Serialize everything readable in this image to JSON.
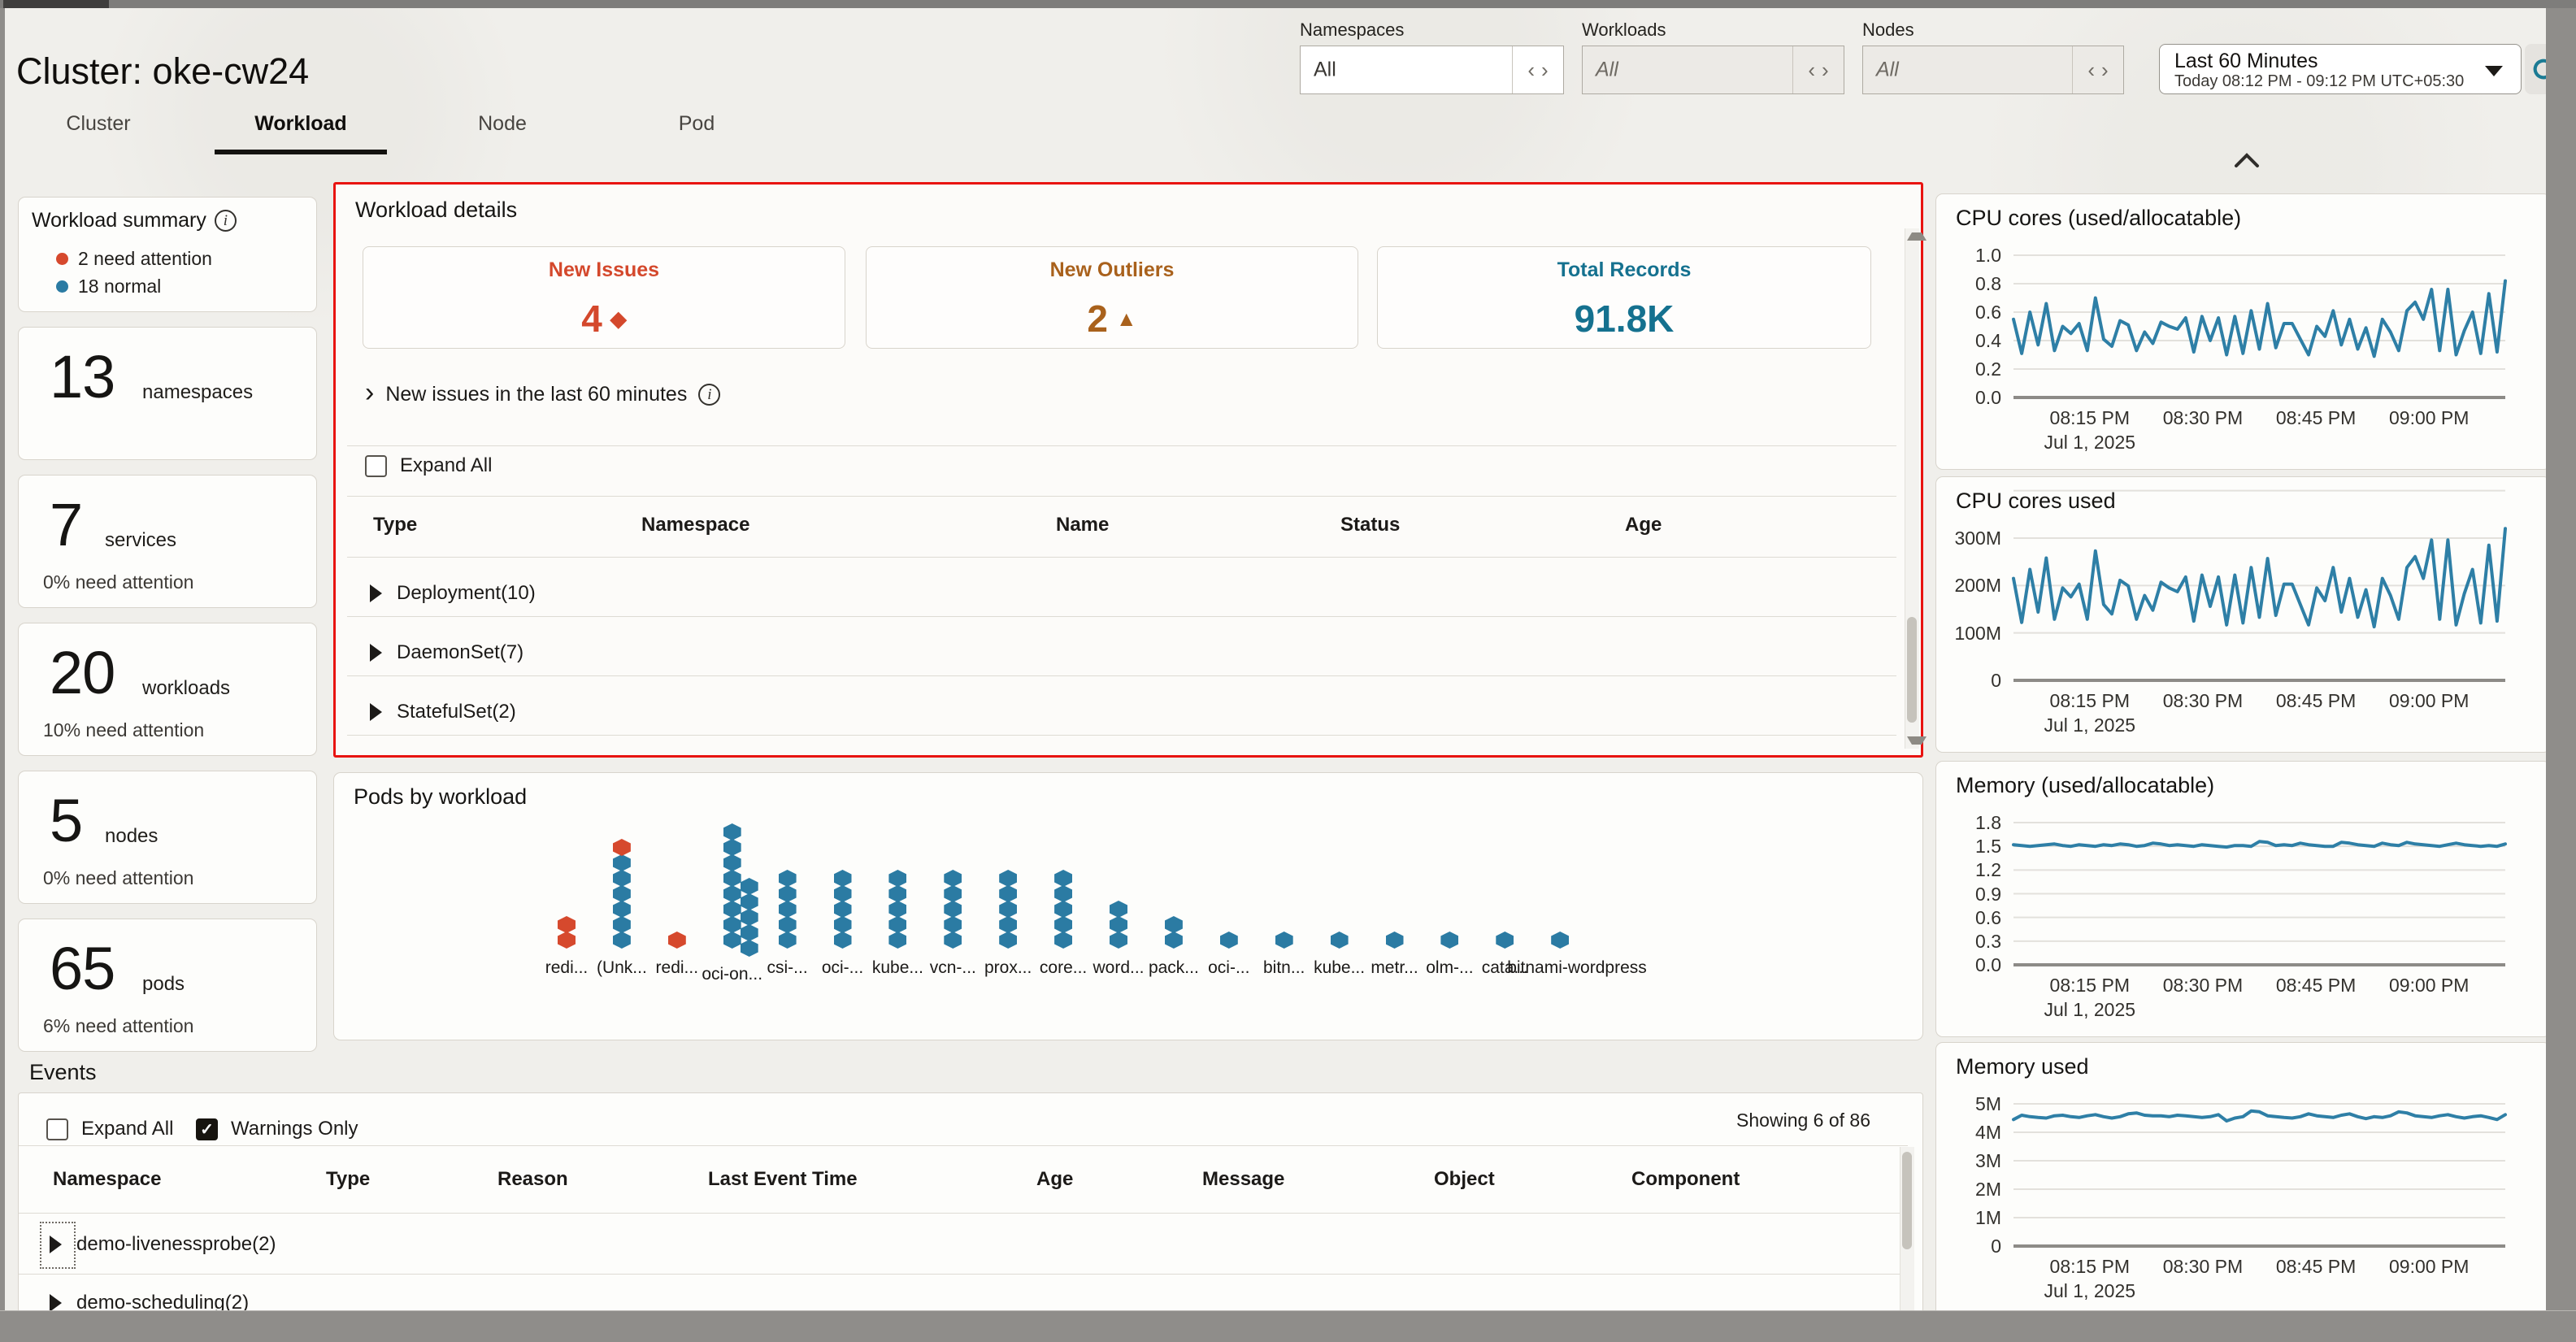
{
  "header": {
    "title": "Cluster: oke-cw24",
    "tabs": [
      {
        "label": "Cluster",
        "active": false
      },
      {
        "label": "Workload",
        "active": true
      },
      {
        "label": "Node",
        "active": false
      },
      {
        "label": "Pod",
        "active": false
      }
    ],
    "filters": [
      {
        "label": "Namespaces",
        "value": "All",
        "disabled": false
      },
      {
        "label": "Workloads",
        "value": "All",
        "disabled": true
      },
      {
        "label": "Nodes",
        "value": "All",
        "disabled": true
      }
    ],
    "time_range": {
      "primary": "Last 60 Minutes",
      "secondary": "Today 08:12 PM - 09:12 PM UTC+05:30"
    }
  },
  "sidebar": {
    "summary": {
      "title": "Workload summary",
      "legend": [
        {
          "text": "2 need attention",
          "color": "#d6492d"
        },
        {
          "text": "18 normal",
          "color": "#2b7ba3"
        }
      ]
    },
    "stats": [
      {
        "value": "13",
        "label": "namespaces",
        "sub": ""
      },
      {
        "value": "7",
        "label": "services",
        "sub": "0% need attention"
      },
      {
        "value": "20",
        "label": "workloads",
        "sub": "10% need attention"
      },
      {
        "value": "5",
        "label": "nodes",
        "sub": "0% need attention"
      },
      {
        "value": "65",
        "label": "pods",
        "sub": "6% need attention"
      }
    ]
  },
  "workload_details": {
    "title": "Workload details",
    "kpis": [
      {
        "label": "New Issues",
        "value": "4",
        "icon": "diamond",
        "color": "#d4482c"
      },
      {
        "label": "New Outliers",
        "value": "2",
        "icon": "triangle",
        "color": "#a9611c"
      },
      {
        "label": "Total Records",
        "value": "91.8K",
        "icon": "",
        "color": "#15718f"
      }
    ],
    "new_issues_link": "New issues in the last 60 minutes",
    "expand_all": "Expand All",
    "columns": [
      "Type",
      "Namespace",
      "Name",
      "Status",
      "Age"
    ],
    "rows": [
      "Deployment(10)",
      "DaemonSet(7)",
      "StatefulSet(2)"
    ]
  },
  "events": {
    "title": "Events",
    "expand_all": "Expand All",
    "warnings_only": "Warnings Only",
    "showing": "Showing 6 of 86",
    "columns": [
      "Namespace",
      "Type",
      "Reason",
      "Last Event Time",
      "Age",
      "Message",
      "Object",
      "Component"
    ],
    "rows": [
      "demo-livenessprobe(2)",
      "demo-scheduling(2)"
    ]
  },
  "chart_data": [
    {
      "id": "pods_by_workload",
      "type": "dot-column",
      "title": "Pods by workload",
      "colors": {
        "normal": "#2b7ba3",
        "attention": "#d6492d"
      },
      "columns": [
        {
          "label": "redi...",
          "dots": "rr"
        },
        {
          "label": "(Unk...",
          "dots": "bbbbbbr"
        },
        {
          "label": "redi...",
          "dots": "r"
        },
        {
          "label": "oci-on...",
          "dots": "bbbbbbbb",
          "side": "bbbbb",
          "label_dy": 8
        },
        {
          "label": "csi-...",
          "dots": "bbbbb"
        },
        {
          "label": "oci-...",
          "dots": "bbbbb"
        },
        {
          "label": "kube...",
          "dots": "bbbbb"
        },
        {
          "label": "vcn-...",
          "dots": "bbbbb"
        },
        {
          "label": "prox...",
          "dots": "bbbbb"
        },
        {
          "label": "core...",
          "dots": "bbbbb"
        },
        {
          "label": "word...",
          "dots": "bbb"
        },
        {
          "label": "pack...",
          "dots": "bb"
        },
        {
          "label": "oci-...",
          "dots": "b"
        },
        {
          "label": "bitn...",
          "dots": "b"
        },
        {
          "label": "kube...",
          "dots": "b"
        },
        {
          "label": "metr...",
          "dots": "b"
        },
        {
          "label": "olm-...",
          "dots": "b"
        },
        {
          "label": "cata...",
          "dots": "b"
        },
        {
          "label": "bitnami-wordpress",
          "dots": "b"
        }
      ]
    },
    {
      "id": "cpu_ratio",
      "type": "line",
      "title": "CPU cores (used/allocatable)",
      "yticks": [
        "1.0",
        "0.8",
        "0.6",
        "0.4",
        "0.2",
        "0.0"
      ],
      "ytop": 1.0,
      "extra_top_grid": false,
      "xticks": [
        "08:15 PM",
        "08:30 PM",
        "08:45 PM",
        "09:00 PM"
      ],
      "date": "Jul 1, 2025",
      "line_color": "#2e7fa6",
      "values": [
        0.55,
        0.31,
        0.6,
        0.37,
        0.66,
        0.33,
        0.5,
        0.45,
        0.52,
        0.33,
        0.7,
        0.41,
        0.36,
        0.54,
        0.51,
        0.33,
        0.46,
        0.38,
        0.53,
        0.5,
        0.48,
        0.56,
        0.32,
        0.57,
        0.4,
        0.56,
        0.3,
        0.57,
        0.31,
        0.61,
        0.34,
        0.66,
        0.35,
        0.52,
        0.52,
        0.41,
        0.3,
        0.5,
        0.43,
        0.61,
        0.37,
        0.55,
        0.34,
        0.49,
        0.29,
        0.55,
        0.46,
        0.33,
        0.61,
        0.67,
        0.55,
        0.76,
        0.33,
        0.76,
        0.3,
        0.47,
        0.6,
        0.31,
        0.73,
        0.32,
        0.82
      ]
    },
    {
      "id": "cpu_used",
      "type": "line",
      "title": "CPU cores used",
      "yticks": [
        "300M",
        "200M",
        "100M",
        "0"
      ],
      "ytop": 300,
      "extra_top_grid": true,
      "xticks": [
        "08:15 PM",
        "08:30 PM",
        "08:45 PM",
        "09:00 PM"
      ],
      "date": "Jul 1, 2025",
      "line_color": "#2e7fa6",
      "values": [
        215,
        122,
        234,
        144,
        258,
        129,
        195,
        176,
        203,
        129,
        273,
        160,
        140,
        211,
        199,
        129,
        179,
        148,
        207,
        195,
        187,
        218,
        125,
        222,
        156,
        218,
        117,
        222,
        121,
        238,
        133,
        257,
        137,
        203,
        203,
        160,
        117,
        195,
        168,
        238,
        144,
        215,
        133,
        191,
        113,
        215,
        179,
        129,
        238,
        261,
        215,
        296,
        129,
        296,
        117,
        183,
        234,
        121,
        285,
        125,
        320
      ]
    },
    {
      "id": "mem_ratio",
      "type": "line",
      "title": "Memory (used/allocatable)",
      "yticks": [
        "1.8",
        "1.5",
        "1.2",
        "0.9",
        "0.6",
        "0.3",
        "0.0"
      ],
      "ytop": 1.8,
      "extra_top_grid": false,
      "xticks": [
        "08:15 PM",
        "08:30 PM",
        "08:45 PM",
        "09:00 PM"
      ],
      "date": "Jul 1, 2025",
      "line_color": "#2e7fa6",
      "values": [
        1.52,
        1.51,
        1.5,
        1.51,
        1.52,
        1.53,
        1.51,
        1.5,
        1.52,
        1.51,
        1.5,
        1.52,
        1.51,
        1.53,
        1.52,
        1.5,
        1.51,
        1.54,
        1.53,
        1.51,
        1.52,
        1.51,
        1.5,
        1.52,
        1.51,
        1.5,
        1.49,
        1.51,
        1.51,
        1.5,
        1.56,
        1.55,
        1.51,
        1.52,
        1.51,
        1.54,
        1.52,
        1.51,
        1.5,
        1.5,
        1.55,
        1.54,
        1.52,
        1.51,
        1.5,
        1.54,
        1.52,
        1.51,
        1.55,
        1.53,
        1.52,
        1.51,
        1.5,
        1.52,
        1.54,
        1.52,
        1.51,
        1.5,
        1.51,
        1.5,
        1.53
      ]
    },
    {
      "id": "mem_used",
      "type": "line",
      "title": "Memory used",
      "yticks": [
        "5M",
        "4M",
        "3M",
        "2M",
        "1M",
        "0"
      ],
      "ytop": 5,
      "extra_top_grid": false,
      "xticks": [
        "08:15 PM",
        "08:30 PM",
        "08:45 PM",
        "09:00 PM"
      ],
      "date": "Jul 1, 2025",
      "line_color": "#2e7fa6",
      "values": [
        4.45,
        4.6,
        4.55,
        4.52,
        4.5,
        4.58,
        4.6,
        4.55,
        4.52,
        4.58,
        4.62,
        4.55,
        4.5,
        4.55,
        4.65,
        4.68,
        4.6,
        4.58,
        4.58,
        4.55,
        4.6,
        4.58,
        4.55,
        4.52,
        4.55,
        4.62,
        4.4,
        4.5,
        4.55,
        4.75,
        4.72,
        4.58,
        4.55,
        4.52,
        4.5,
        4.55,
        4.65,
        4.58,
        4.55,
        4.52,
        4.6,
        4.65,
        4.55,
        4.48,
        4.55,
        4.52,
        4.58,
        4.72,
        4.68,
        4.58,
        4.55,
        4.52,
        4.58,
        4.62,
        4.55,
        4.5,
        4.55,
        4.58,
        4.52,
        4.45,
        4.62
      ]
    }
  ]
}
